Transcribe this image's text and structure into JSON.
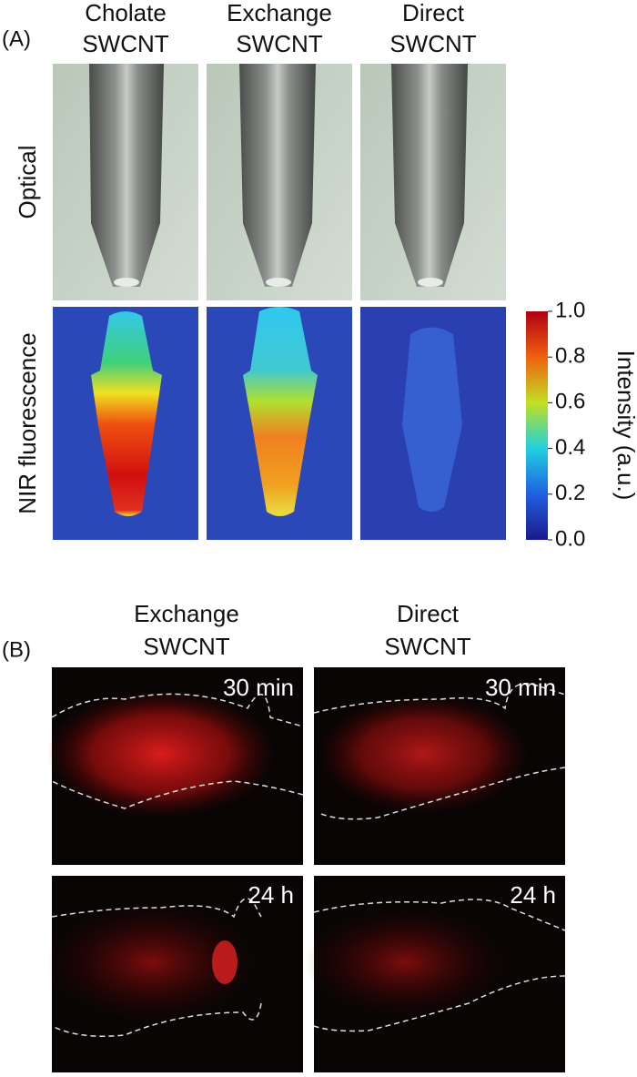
{
  "panel_a": {
    "label": "(A)",
    "columns": [
      [
        "Cholate",
        "SWCNT"
      ],
      [
        "Exchange",
        "SWCNT"
      ],
      [
        "Direct",
        "SWCNT"
      ]
    ],
    "rows": [
      "Optical",
      "NIR fluorescence"
    ],
    "colorbar": {
      "label": "Intensity (a.u.)",
      "ticks": [
        {
          "value": 1,
          "label": "1.0"
        },
        {
          "value": 0.8,
          "label": "0.8"
        },
        {
          "value": 0.6,
          "label": "0.6"
        },
        {
          "value": 0.4,
          "label": "0.4"
        },
        {
          "value": 0.2,
          "label": "0.2"
        },
        {
          "value": 0,
          "label": "0.0"
        }
      ]
    }
  },
  "panel_b": {
    "label": "(B)",
    "columns": [
      [
        "Exchange",
        "SWCNT"
      ],
      [
        "Direct",
        "SWCNT"
      ]
    ],
    "times": [
      "30 min",
      "24 h"
    ]
  }
}
